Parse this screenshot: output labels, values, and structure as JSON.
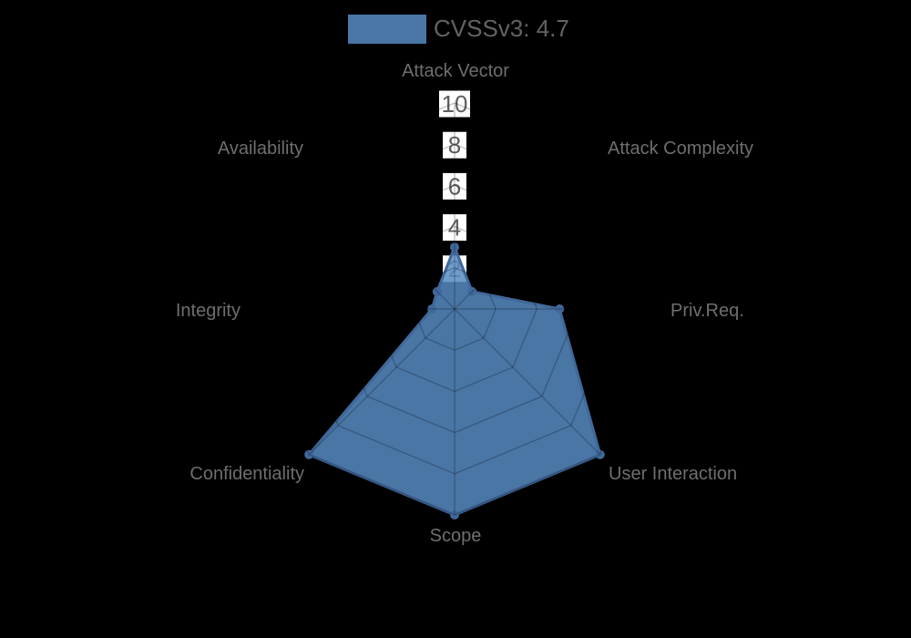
{
  "legend": {
    "label": "CVSSv3: 4.7"
  },
  "chart_data": {
    "type": "radar",
    "categories": [
      "Attack Vector",
      "Attack Complexity",
      "Priv.Req.",
      "User Interaction",
      "Scope",
      "Confidentiality",
      "Integrity",
      "Availability"
    ],
    "series": [
      {
        "name": "CVSSv3: 4.7",
        "values": [
          3.0,
          1.2,
          5.1,
          10,
          10,
          10,
          1.1,
          1.2
        ]
      }
    ],
    "radial_ticks": [
      2,
      4,
      6,
      8,
      10
    ],
    "radial_range": [
      0,
      10
    ],
    "grid": true,
    "legend_position": "top-center",
    "title": "",
    "start_axis": "top",
    "direction": "clockwise"
  },
  "colors": {
    "background": "#000000",
    "series_fill": "#578bc3",
    "series_fill_opacity": 0.85,
    "series_stroke": "#40689a",
    "grid_line": "#000000",
    "grid_line_opacity": 0.22,
    "axis_label_text": "#6e6e6e",
    "tick_text": "#5e5e5e",
    "tick_box": "#ffffff",
    "legend_text": "#636363"
  }
}
